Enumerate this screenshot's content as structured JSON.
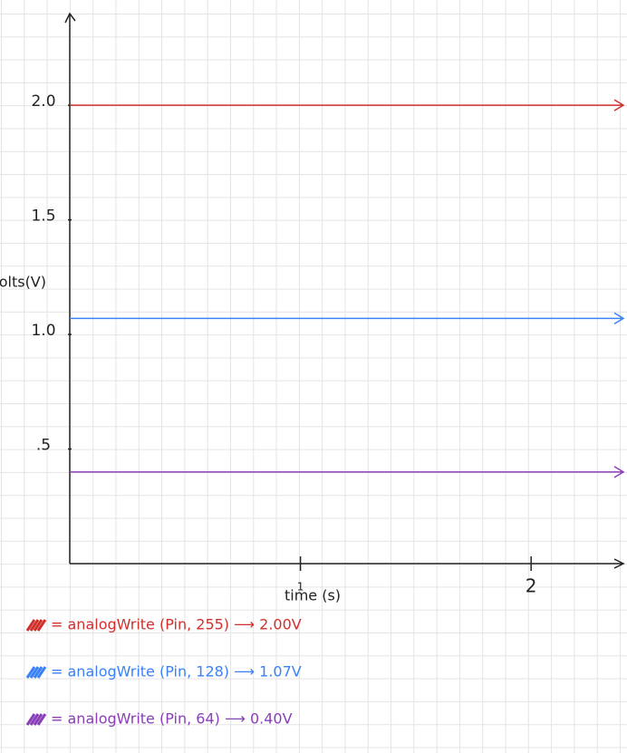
{
  "chart_data": {
    "type": "line",
    "x_label": "time (s)",
    "y_label": "Volts(V)",
    "x": [
      0,
      2.4
    ],
    "series": [
      {
        "name": "= analogWrite (Pin, 255) ⟶ 2.00V",
        "color": "#d0312d",
        "values": [
          2.0,
          2.0
        ]
      },
      {
        "name": "= analogWrite (Pin, 128) ⟶ 1.07V",
        "color": "#3b82f6",
        "values": [
          1.07,
          1.07
        ]
      },
      {
        "name": "= analogWrite (Pin, 64) ⟶ 0.40V",
        "color": "#8a3fb8",
        "values": [
          0.4,
          0.4
        ]
      }
    ],
    "xlim": [
      0,
      2.4
    ],
    "xticks": [
      1,
      2
    ],
    "ylim": [
      0,
      2.4
    ],
    "yticks": [
      {
        "value": 0.5,
        "label": ".5"
      },
      {
        "value": 1,
        "label": "1.0"
      },
      1.5,
      {
        "value": 2,
        "label": "2.0"
      }
    ]
  }
}
